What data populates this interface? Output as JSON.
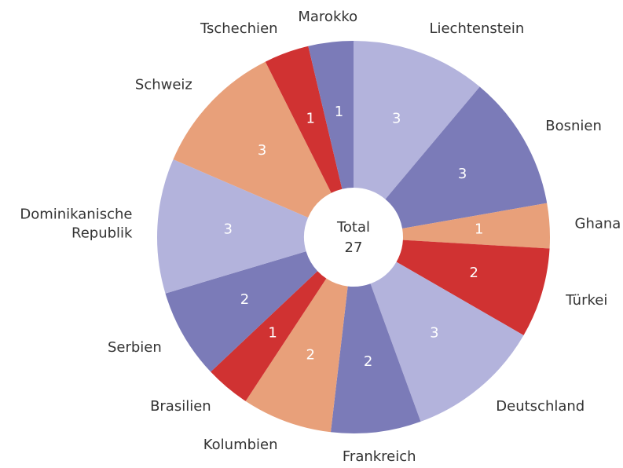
{
  "chart_data": {
    "type": "donut",
    "categories": [
      "Liechtenstein",
      "Bosnien",
      "Ghana",
      "Türkei",
      "Deutschland",
      "Frankreich",
      "Kolumbien",
      "Brasilien",
      "Serbien",
      "Dominikanische Republik",
      "Schweiz",
      "Tschechien",
      "Marokko"
    ],
    "values": [
      3,
      3,
      1,
      2,
      3,
      2,
      2,
      1,
      2,
      3,
      3,
      1,
      1
    ],
    "colors": [
      "#b3b3dc",
      "#7b7bb8",
      "#e8a07a",
      "#d03232",
      "#b3b3dc",
      "#7b7bb8",
      "#e8a07a",
      "#d03232",
      "#7b7bb8",
      "#b3b3dc",
      "#e8a07a",
      "#d03232",
      "#7b7bb8"
    ],
    "center_label": "Total",
    "total": 27
  }
}
